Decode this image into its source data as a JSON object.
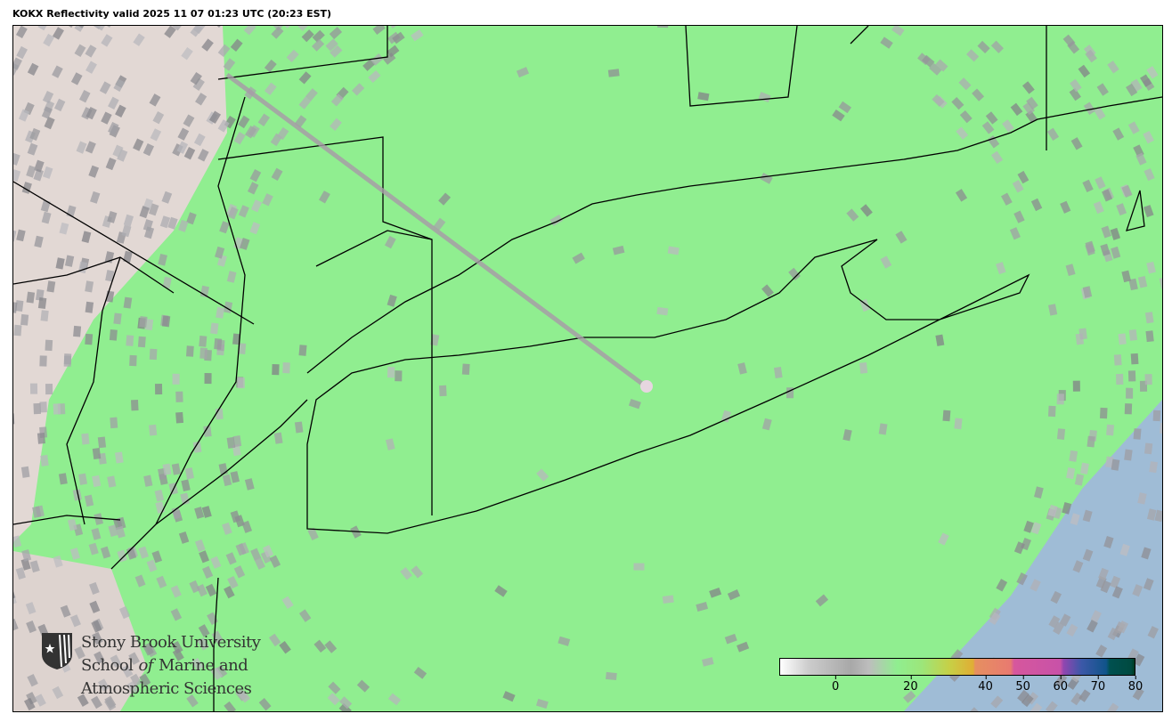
{
  "title": "KOKX Reflectivity valid 2025 11 07 01:23 UTC (20:23 EST)",
  "logo": {
    "line1": "Stony Brook University",
    "line2_a": "School ",
    "line2_of": "of",
    "line2_b": " Marine and",
    "line3": "Atmospheric Sciences",
    "icon": "sbu-shield-icon"
  },
  "colorbar": {
    "min": -15,
    "max": 80,
    "ticks": [
      "0",
      "20",
      "40",
      "50",
      "60",
      "70",
      "80"
    ],
    "tick_values": [
      0,
      20,
      40,
      50,
      60,
      70,
      80
    ]
  },
  "colors": {
    "radar_dominant": "#90ee90",
    "ocean": "#9fbcd6",
    "land": "#e2d8d4",
    "noise": "#a0a0a0"
  }
}
